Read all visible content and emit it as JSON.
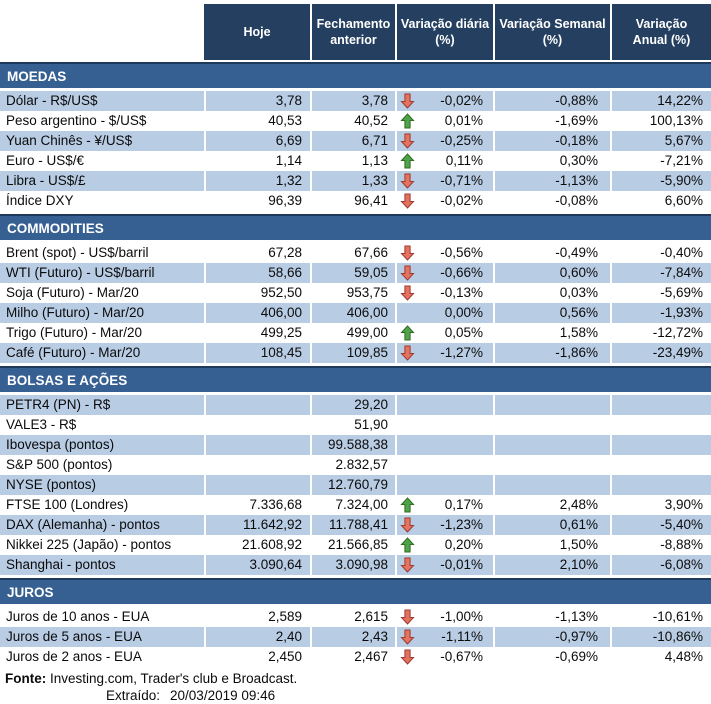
{
  "colors": {
    "header_bg": "#243F5F",
    "band_bg": "#376092",
    "band_border": "#1E3A5A",
    "stripe_light": "#B8CCE4",
    "up_arrow_fill": "#4FA34D",
    "up_arrow_stroke": "#2F6C1F",
    "down_arrow_fill": "#E7715F",
    "down_arrow_stroke": "#9C3A31"
  },
  "header": {
    "cols": [
      {
        "line1": "Hoje",
        "line2": ""
      },
      {
        "line1": "Fechamento",
        "line2": "anterior"
      },
      {
        "line1": "Variação diária",
        "line2": "(%)"
      },
      {
        "line1": "Variação Semanal",
        "line2": "(%)"
      },
      {
        "line1": "Variação",
        "line2": "Anual (%)"
      }
    ]
  },
  "sections": [
    {
      "title": "MOEDAS",
      "first_shade": "light",
      "rows": [
        {
          "label": "Dólar - R$/US$",
          "hoje": "3,78",
          "fechamento": "3,78",
          "arrow": "down",
          "var_diaria": "-0,02%",
          "var_semanal": "-0,88%",
          "var_anual": "14,22%"
        },
        {
          "label": "Peso argentino - $/US$",
          "hoje": "40,53",
          "fechamento": "40,52",
          "arrow": "up",
          "var_diaria": "0,01%",
          "var_semanal": "-1,69%",
          "var_anual": "100,13%"
        },
        {
          "label": "Yuan Chinês - ¥/US$",
          "hoje": "6,69",
          "fechamento": "6,71",
          "arrow": "down",
          "var_diaria": "-0,25%",
          "var_semanal": "-0,18%",
          "var_anual": "5,67%"
        },
        {
          "label": "Euro - US$/€",
          "hoje": "1,14",
          "fechamento": "1,13",
          "arrow": "up",
          "var_diaria": "0,11%",
          "var_semanal": "0,30%",
          "var_anual": "-7,21%"
        },
        {
          "label": "Libra - US$/£",
          "hoje": "1,32",
          "fechamento": "1,33",
          "arrow": "down",
          "var_diaria": "-0,71%",
          "var_semanal": "-1,13%",
          "var_anual": "-5,90%"
        },
        {
          "label": "Índice DXY",
          "hoje": "96,39",
          "fechamento": "96,41",
          "arrow": "down",
          "var_diaria": "-0,02%",
          "var_semanal": "-0,08%",
          "var_anual": "6,60%"
        }
      ]
    },
    {
      "title": "COMMODITIES",
      "first_shade": "white",
      "rows": [
        {
          "label": "Brent (spot) - US$/barril",
          "hoje": "67,28",
          "fechamento": "67,66",
          "arrow": "down",
          "var_diaria": "-0,56%",
          "var_semanal": "-0,49%",
          "var_anual": "-0,40%"
        },
        {
          "label": "WTI (Futuro) - US$/barril",
          "hoje": "58,66",
          "fechamento": "59,05",
          "arrow": "down",
          "var_diaria": "-0,66%",
          "var_semanal": "0,60%",
          "var_anual": "-7,84%"
        },
        {
          "label": "Soja (Futuro) - Mar/20",
          "hoje": "952,50",
          "fechamento": "953,75",
          "arrow": "down",
          "var_diaria": "-0,13%",
          "var_semanal": "0,03%",
          "var_anual": "-5,69%"
        },
        {
          "label": "Milho (Futuro) - Mar/20",
          "hoje": "406,00",
          "fechamento": "406,00",
          "arrow": "none",
          "var_diaria": "0,00%",
          "var_semanal": "0,56%",
          "var_anual": "-1,93%"
        },
        {
          "label": "Trigo (Futuro) - Mar/20",
          "hoje": "499,25",
          "fechamento": "499,00",
          "arrow": "up",
          "var_diaria": "0,05%",
          "var_semanal": "1,58%",
          "var_anual": "-12,72%"
        },
        {
          "label": "Café (Futuro) - Mar/20",
          "hoje": "108,45",
          "fechamento": "109,85",
          "arrow": "down",
          "var_diaria": "-1,27%",
          "var_semanal": "-1,86%",
          "var_anual": "-23,49%"
        }
      ]
    },
    {
      "title": "BOLSAS E AÇÕES",
      "first_shade": "light",
      "rows": [
        {
          "label": "PETR4 (PN) - R$",
          "hoje": "",
          "fechamento": "29,20",
          "arrow": "none",
          "var_diaria": "",
          "var_semanal": "",
          "var_anual": ""
        },
        {
          "label": "VALE3 - R$",
          "hoje": "",
          "fechamento": "51,90",
          "arrow": "none",
          "var_diaria": "",
          "var_semanal": "",
          "var_anual": ""
        },
        {
          "label": "Ibovespa (pontos)",
          "hoje": "",
          "fechamento": "99.588,38",
          "arrow": "none",
          "var_diaria": "",
          "var_semanal": "",
          "var_anual": ""
        },
        {
          "label": "S&P 500 (pontos)",
          "hoje": "",
          "fechamento": "2.832,57",
          "arrow": "none",
          "var_diaria": "",
          "var_semanal": "",
          "var_anual": ""
        },
        {
          "label": "NYSE (pontos)",
          "hoje": "",
          "fechamento": "12.760,79",
          "arrow": "none",
          "var_diaria": "",
          "var_semanal": "",
          "var_anual": ""
        },
        {
          "label": "FTSE 100 (Londres)",
          "hoje": "7.336,68",
          "fechamento": "7.324,00",
          "arrow": "up",
          "var_diaria": "0,17%",
          "var_semanal": "2,48%",
          "var_anual": "3,90%"
        },
        {
          "label": "DAX (Alemanha) - pontos",
          "hoje": "11.642,92",
          "fechamento": "11.788,41",
          "arrow": "down",
          "var_diaria": "-1,23%",
          "var_semanal": "0,61%",
          "var_anual": "-5,40%"
        },
        {
          "label": "Nikkei 225 (Japão) - pontos",
          "hoje": "21.608,92",
          "fechamento": "21.566,85",
          "arrow": "up",
          "var_diaria": "0,20%",
          "var_semanal": "1,50%",
          "var_anual": "-8,88%"
        },
        {
          "label": "Shanghai - pontos",
          "hoje": "3.090,64",
          "fechamento": "3.090,98",
          "arrow": "down",
          "var_diaria": "-0,01%",
          "var_semanal": "2,10%",
          "var_anual": "-6,08%"
        }
      ]
    },
    {
      "title": "JUROS",
      "first_shade": "white",
      "rows": [
        {
          "label": "Juros de 10 anos - EUA",
          "hoje": "2,589",
          "fechamento": "2,615",
          "arrow": "down",
          "var_diaria": "-1,00%",
          "var_semanal": "-1,13%",
          "var_anual": "-10,61%"
        },
        {
          "label": "Juros de 5 anos - EUA",
          "hoje": "2,40",
          "fechamento": "2,43",
          "arrow": "down",
          "var_diaria": "-1,11%",
          "var_semanal": "-0,97%",
          "var_anual": "-10,86%"
        },
        {
          "label": "Juros de 2 anos - EUA",
          "hoje": "2,450",
          "fechamento": "2,467",
          "arrow": "down",
          "var_diaria": "-0,67%",
          "var_semanal": "-0,69%",
          "var_anual": "4,48%"
        }
      ]
    }
  ],
  "footer": {
    "fonte_label": "Fonte:",
    "fonte_text": "Investing.com, Trader's club e Broadcast.",
    "extraido_label": "Extraído:",
    "extraido_value": "20/03/2019 09:46"
  }
}
